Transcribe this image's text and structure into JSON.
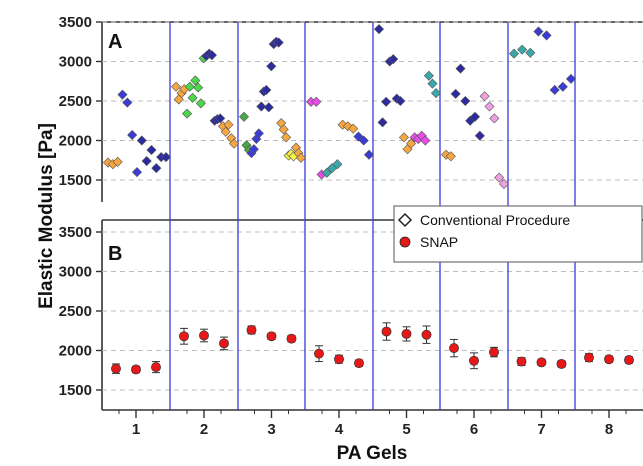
{
  "chart_data": {
    "type": "scatter",
    "xlabel": "PA Gels",
    "ylabel": "Elastic Modulus [Pa]",
    "categories": [
      "1",
      "2",
      "3",
      "4",
      "5",
      "6",
      "7",
      "8"
    ],
    "yticks": [
      "1500",
      "2000",
      "2500",
      "3000",
      "3500"
    ],
    "grid": true,
    "panels": [
      {
        "label": "A",
        "series": [
          {
            "name": "Conventional Procedure",
            "marker": "diamond",
            "groups": [
              {
                "color": "#f5a742",
                "values": [
                  1720,
                  1700,
                  1730
                ]
              },
              {
                "color": "#3b3cd6",
                "values": [
                  2580,
                  2480,
                  2070,
                  1600
                ]
              },
              {
                "color": "#2c2c9e",
                "values": [
                  2000,
                  1740,
                  1880,
                  1650,
                  1790,
                  1790
                ]
              },
              {
                "color": "#f5a742",
                "values": [
                  2680,
                  2520,
                  2600,
                  2650
                ]
              },
              {
                "color": "#4cd64c",
                "values": [
                  2340,
                  2680,
                  2540,
                  2760,
                  2670,
                  2470,
                  3040
                ]
              },
              {
                "color": "#2c2c9e",
                "values": [
                  3070,
                  3100,
                  3080,
                  2250,
                  2270,
                  2280
                ]
              },
              {
                "color": "#f5a742",
                "values": [
                  2180,
                  2110,
                  2200,
                  2030,
                  1960
                ]
              },
              {
                "color": "#4aa84a",
                "values": [
                  2300,
                  1940,
                  1880
                ]
              },
              {
                "color": "#3b3cd6",
                "values": [
                  1840,
                  1890,
                  2020,
                  2090
                ]
              },
              {
                "color": "#2c2c9e",
                "values": [
                  2430,
                  2620,
                  2640,
                  2420,
                  2940,
                  3220,
                  3250,
                  3240
                ]
              },
              {
                "color": "#f5a742",
                "values": [
                  2220,
                  2140,
                  2040
                ]
              },
              {
                "color": "#f5f542",
                "values": [
                  1810,
                  1830,
                  1800
                ]
              },
              {
                "color": "#f5a742",
                "values": [
                  1910,
                  1840,
                  1780
                ]
              },
              {
                "color": "#e84ce8",
                "values": [
                  2490,
                  2490,
                  1570
                ]
              },
              {
                "color": "#3aa8a8",
                "values": [
                  1590,
                  1650,
                  1700
                ]
              },
              {
                "color": "#f5a742",
                "values": [
                  2200,
                  2180,
                  2150
                ]
              },
              {
                "color": "#3b3cd6",
                "values": [
                  2050,
                  2000,
                  1820
                ]
              },
              {
                "color": "#2c2c9e",
                "values": [
                  3410,
                  2230,
                  2490,
                  3000,
                  3030,
                  2530,
                  2500
                ]
              },
              {
                "color": "#f5a742",
                "values": [
                  2040,
                  1890,
                  1960
                ]
              },
              {
                "color": "#e84ce8",
                "values": [
                  2040,
                  2020,
                  2060,
                  2000
                ]
              },
              {
                "color": "#3aa8a8",
                "values": [
                  2820,
                  2720,
                  2600
                ]
              },
              {
                "color": "#f5a742",
                "values": [
                  1820,
                  1800
                ]
              },
              {
                "color": "#2c2c9e",
                "values": [
                  2590,
                  2910,
                  2500,
                  2250,
                  2300,
                  2060
                ]
              },
              {
                "color": "#f0a0e0",
                "values": [
                  2560,
                  2430,
                  2280,
                  1530,
                  1450
                ]
              },
              {
                "color": "#3aa8a8",
                "values": [
                  3100,
                  3150,
                  3110
                ]
              },
              {
                "color": "#3b3cd6",
                "values": [
                  3380,
                  3330,
                  2640,
                  2680,
                  2780
                ]
              }
            ]
          }
        ]
      },
      {
        "label": "B",
        "series": [
          {
            "name": "SNAP",
            "marker": "circle",
            "color": "#e81818",
            "values": [
              1770,
              1760,
              1790,
              2180,
              2190,
              2090,
              2260,
              2180,
              2150,
              1960,
              1890,
              1840,
              2240,
              2210,
              2200,
              2030,
              1870,
              1980,
              1860,
              1850,
              1830,
              1910,
              1890,
              1880
            ],
            "errors": [
              60,
              40,
              70,
              100,
              80,
              80,
              50,
              40,
              40,
              100,
              50,
              40,
              110,
              90,
              110,
              110,
              100,
              60,
              50,
              40,
              40,
              50,
              40,
              40
            ]
          }
        ]
      }
    ],
    "legend": {
      "position": "top-right of panel B",
      "entries": [
        {
          "label": "Conventional Procedure",
          "marker": "diamond-outline"
        },
        {
          "label": "SNAP",
          "marker": "circle",
          "color": "#e81818"
        }
      ]
    }
  }
}
